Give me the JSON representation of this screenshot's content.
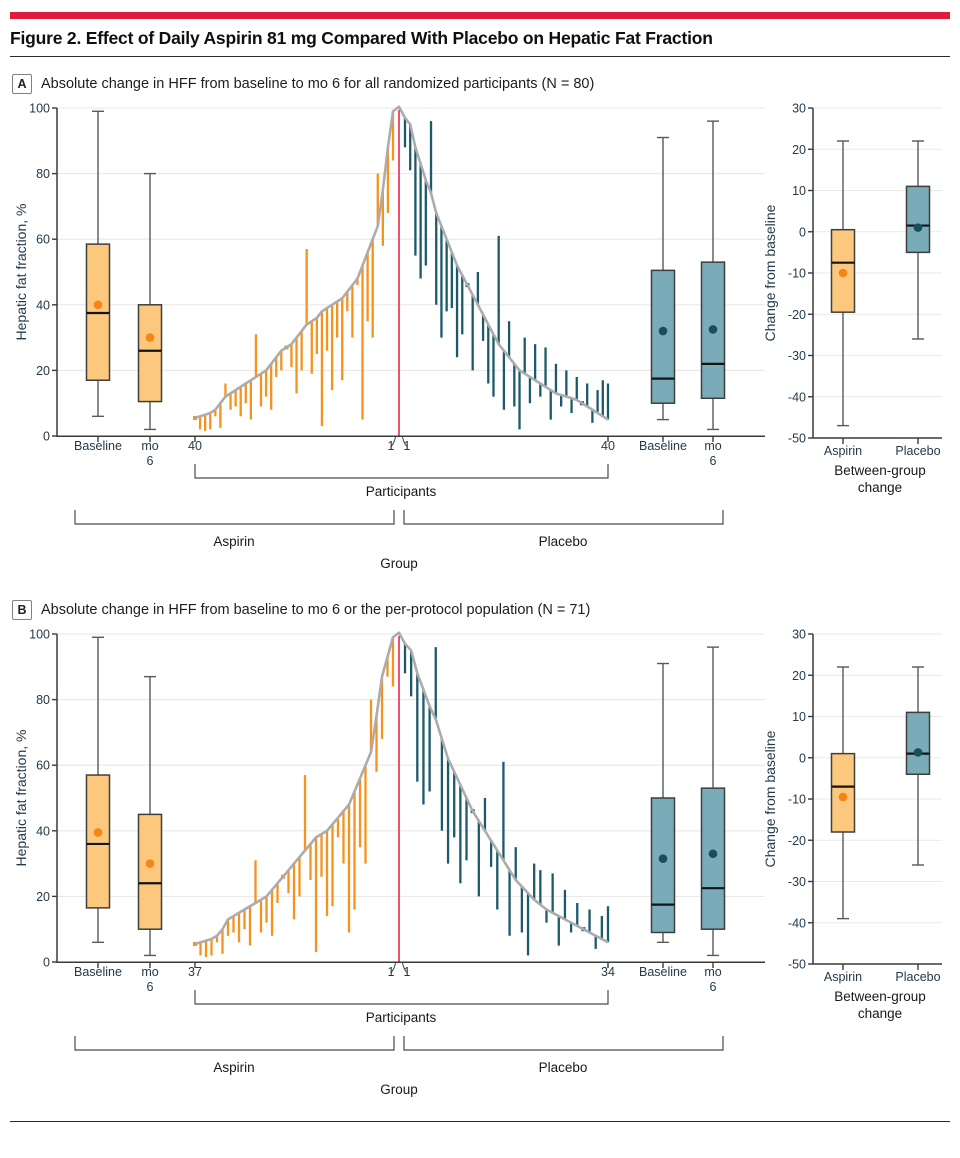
{
  "figure": {
    "title": "Figure 2. Effect of Daily Aspirin 81 mg Compared With Placebo on Hepatic Fat Fraction"
  },
  "colors": {
    "accent_red": "#DE1B3D",
    "aspirin_segment": "#F6921E",
    "aspirin_box_fill": "#FCC87E",
    "aspirin_mean": "#F58516",
    "placebo_segment": "#1C5A6B",
    "placebo_box_fill": "#79ABB8",
    "placebo_mean": "#15505F",
    "box_border": "#3E3E3C",
    "median": "#141414",
    "whisker": "#58595B",
    "curve": "#ACACAC",
    "red_line": "#ED3F60",
    "grid": "#E9E9E9",
    "axis": "#3A3A3A",
    "bracket": "#4A4A4A"
  },
  "chart_data": {
    "type": "box+waterfall",
    "panels": [
      {
        "letter": "A",
        "caption": "Absolute change in HFF from baseline to mo 6 for all randomized participants (N = 80)",
        "main_chart": {
          "ylabel": "Hepatic fat fraction, %",
          "yticks": [
            0,
            20,
            40,
            60,
            80,
            100
          ],
          "ylim": [
            0,
            100
          ],
          "xlabels": {
            "left_baseline": "Baseline",
            "left_mo6": [
              "mo",
              "6"
            ],
            "wf_left": "40",
            "wf_center": [
              "1",
              "1"
            ],
            "wf_right": "40",
            "right_baseline": "Baseline",
            "right_mo6": [
              "mo",
              "6"
            ]
          },
          "bracket_participants": "Participants",
          "bracket_aspirin": "Aspirin",
          "bracket_placebo": "Placebo",
          "bracket_group": "Group",
          "boxes": {
            "aspirin_baseline": {
              "lo": 6,
              "q1": 17,
              "med": 37.5,
              "q3": 58.5,
              "hi": 99,
              "mean": 40
            },
            "aspirin_mo6": {
              "lo": 2,
              "q1": 10.5,
              "med": 26,
              "q3": 40,
              "hi": 80,
              "mean": 30
            },
            "placebo_baseline": {
              "lo": 5,
              "q1": 10,
              "med": 17.5,
              "q3": 50.5,
              "hi": 91,
              "mean": 32
            },
            "placebo_mo6": {
              "lo": 2,
              "q1": 11.5,
              "med": 22,
              "q3": 53,
              "hi": 96,
              "mean": 32.5
            }
          },
          "waterfall": {
            "aspirin": {
              "baseline": [
                5.5,
                6,
                6.5,
                7,
                8,
                10,
                12,
                13,
                14,
                15,
                16,
                17,
                18,
                19,
                20,
                22,
                24,
                26,
                27,
                28,
                30,
                32,
                34,
                35,
                36,
                38,
                39,
                40,
                41,
                42,
                44,
                46,
                48,
                52,
                56,
                60,
                64,
                75,
                88,
                99
              ],
              "mo6": [
                5.5,
                2,
                1.5,
                2,
                6,
                2.5,
                16,
                8,
                9,
                6,
                10,
                5,
                31,
                9,
                12,
                8,
                18,
                20,
                26.5,
                21,
                13,
                20,
                57,
                19,
                25,
                3,
                26,
                14,
                30,
                17,
                38,
                30,
                46,
                5,
                35,
                30,
                80,
                58,
                68,
                84
              ]
            },
            "placebo": {
              "baseline": [
                97,
                95,
                88,
                83,
                78,
                74,
                68,
                64,
                60,
                56,
                52,
                49,
                46,
                43,
                40,
                37,
                34,
                31,
                28,
                26,
                24,
                22,
                20,
                19,
                18,
                17,
                16,
                15,
                14,
                13,
                12.5,
                12,
                11.5,
                11,
                10,
                9,
                8,
                7,
                6,
                5
              ],
              "mo6": [
                88,
                81,
                55,
                48,
                52,
                96,
                40,
                30,
                38,
                39,
                24,
                31,
                46,
                20,
                50,
                29,
                16,
                12,
                61,
                8,
                35,
                9,
                2,
                30,
                10,
                28,
                12,
                27,
                5,
                22,
                9,
                20,
                7,
                18,
                10,
                16,
                4,
                14,
                17,
                16
              ]
            }
          }
        },
        "side_chart": {
          "ylabel": "Change from baseline",
          "yticks": [
            30,
            20,
            10,
            0,
            -10,
            -20,
            -30,
            -40,
            -50
          ],
          "ylim": [
            -50,
            30
          ],
          "categories": [
            "Aspirin",
            "Placebo"
          ],
          "xlabel": [
            "Between-group",
            "change"
          ],
          "boxes": {
            "aspirin": {
              "lo": -47,
              "q1": -19.5,
              "med": -7.5,
              "q3": 0.5,
              "hi": 22,
              "mean": -10
            },
            "placebo": {
              "lo": -26,
              "q1": -5,
              "med": 1.5,
              "q3": 11,
              "hi": 22,
              "mean": 1
            }
          }
        }
      },
      {
        "letter": "B",
        "caption": "Absolute change in HFF from baseline to mo 6 or the per-protocol population (N = 71)",
        "main_chart": {
          "ylabel": "Hepatic fat fraction, %",
          "yticks": [
            0,
            20,
            40,
            60,
            80,
            100
          ],
          "ylim": [
            0,
            100
          ],
          "xlabels": {
            "left_baseline": "Baseline",
            "left_mo6": [
              "mo",
              "6"
            ],
            "wf_left": "37",
            "wf_center": [
              "1",
              "1"
            ],
            "wf_right": "34",
            "right_baseline": "Baseline",
            "right_mo6": [
              "mo",
              "6"
            ]
          },
          "bracket_participants": "Participants",
          "bracket_aspirin": "Aspirin",
          "bracket_placebo": "Placebo",
          "bracket_group": "Group",
          "boxes": {
            "aspirin_baseline": {
              "lo": 6,
              "q1": 16.5,
              "med": 36,
              "q3": 57,
              "hi": 99,
              "mean": 39.5
            },
            "aspirin_mo6": {
              "lo": 2,
              "q1": 10,
              "med": 24,
              "q3": 45,
              "hi": 87,
              "mean": 30
            },
            "placebo_baseline": {
              "lo": 6,
              "q1": 9,
              "med": 17.5,
              "q3": 50,
              "hi": 91,
              "mean": 31.5
            },
            "placebo_mo6": {
              "lo": 2,
              "q1": 10,
              "med": 22.5,
              "q3": 53,
              "hi": 96,
              "mean": 33
            }
          },
          "waterfall": {
            "aspirin": {
              "baseline": [
                5.5,
                6,
                6.5,
                7,
                8,
                10,
                13,
                14,
                15,
                16,
                17,
                18,
                19,
                20,
                22,
                24,
                26,
                28,
                30,
                32,
                34,
                36,
                38,
                39,
                40,
                42,
                44,
                46,
                48,
                52,
                56,
                60,
                64,
                75,
                87,
                93,
                99
              ],
              "mo6": [
                5.5,
                2,
                1.5,
                2,
                6,
                2.5,
                8,
                9,
                6,
                10,
                5,
                31,
                9,
                12,
                8,
                18,
                26.5,
                21,
                13,
                20,
                57,
                25,
                3,
                26,
                14,
                17,
                38,
                30,
                9,
                16,
                35,
                30,
                80,
                58,
                68,
                87,
                84
              ]
            },
            "placebo": {
              "baseline": [
                97,
                95,
                88,
                83,
                78,
                74,
                68,
                62,
                58,
                54,
                50,
                46,
                43,
                40,
                37,
                34,
                31,
                28,
                25,
                23,
                21,
                19,
                17.5,
                16,
                15,
                14,
                13,
                12,
                11,
                10,
                9,
                8,
                7,
                6
              ],
              "mo6": [
                88,
                81,
                55,
                48,
                52,
                96,
                40,
                30,
                38,
                24,
                31,
                46,
                20,
                50,
                29,
                16,
                61,
                8,
                35,
                9,
                2,
                30,
                28,
                12,
                27,
                5,
                22,
                9,
                18,
                10,
                16,
                4,
                14,
                17
              ]
            }
          }
        },
        "side_chart": {
          "ylabel": "Change from baseline",
          "yticks": [
            30,
            20,
            10,
            0,
            -10,
            -20,
            -30,
            -40,
            -50
          ],
          "ylim": [
            -50,
            30
          ],
          "categories": [
            "Aspirin",
            "Placebo"
          ],
          "xlabel": [
            "Between-group",
            "change"
          ],
          "boxes": {
            "aspirin": {
              "lo": -39,
              "q1": -18,
              "med": -7,
              "q3": 1,
              "hi": 22,
              "mean": -9.5
            },
            "placebo": {
              "lo": -26,
              "q1": -4,
              "med": 1,
              "q3": 11,
              "hi": 22,
              "mean": 1.3
            }
          }
        }
      }
    ]
  }
}
